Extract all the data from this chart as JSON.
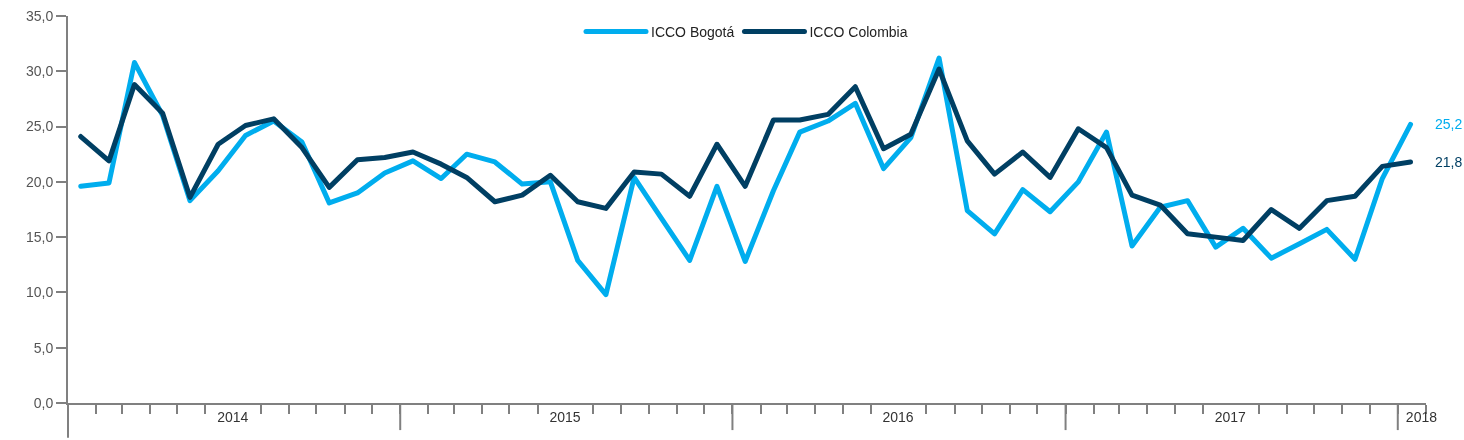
{
  "chart_data": {
    "type": "line",
    "x": [
      "2014-01-15",
      "2014-02-15",
      "2014-03-15",
      "2014-04-15",
      "2014-05-15",
      "2014-06-15",
      "2014-07-15",
      "2014-08-15",
      "2014-09-15",
      "2014-10-15",
      "2014-11-15",
      "2014-12-15",
      "2015-01-15",
      "2015-02-15",
      "2015-03-15",
      "2015-04-15",
      "2015-05-15",
      "2015-06-15",
      "2015-07-15",
      "2015-08-15",
      "2015-09-15",
      "2015-10-15",
      "2015-11-15",
      "2015-12-15",
      "2016-01-15",
      "2016-02-15",
      "2016-03-15",
      "2016-04-15",
      "2016-05-15",
      "2016-06-15",
      "2016-07-15",
      "2016-08-15",
      "2016-09-15",
      "2016-10-15",
      "2016-11-15",
      "2016-12-15",
      "2017-01-15",
      "2017-02-15",
      "2017-03-15",
      "2017-04-15",
      "2017-05-15",
      "2017-06-15",
      "2017-07-15",
      "2017-08-15",
      "2017-09-15",
      "2017-10-15",
      "2017-11-15",
      "2017-12-15",
      "2018-01-15"
    ],
    "series": [
      {
        "name": "ICCO Bogotá",
        "color": "#00adee",
        "values": [
          19.6,
          19.9,
          30.8,
          26.0,
          18.3,
          21.0,
          24.2,
          25.5,
          23.6,
          18.1,
          19.0,
          20.8,
          21.9,
          20.3,
          22.5,
          21.8,
          19.8,
          20.0,
          12.9,
          9.8,
          20.4,
          16.7,
          12.9,
          19.6,
          12.8,
          19.2,
          24.5,
          25.5,
          27.1,
          21.2,
          24.0,
          31.2,
          17.4,
          15.3,
          19.3,
          17.3,
          20.0,
          24.5,
          14.2,
          17.7,
          18.3,
          14.1,
          15.8,
          13.1,
          14.4,
          15.7,
          13.0,
          20.3,
          25.2
        ]
      },
      {
        "name": "ICCO Colombia",
        "color": "#003f63",
        "values": [
          24.1,
          21.9,
          28.8,
          26.2,
          18.6,
          23.4,
          25.1,
          25.7,
          23.1,
          19.5,
          22.0,
          22.2,
          22.7,
          21.6,
          20.4,
          18.2,
          18.8,
          20.6,
          18.2,
          17.6,
          20.9,
          20.7,
          18.7,
          23.4,
          19.6,
          25.6,
          25.6,
          26.1,
          28.6,
          23.0,
          24.3,
          30.2,
          23.7,
          20.7,
          22.7,
          20.4,
          24.8,
          23.1,
          18.8,
          17.9,
          15.3,
          15.0,
          14.7,
          17.5,
          15.8,
          18.3,
          18.7,
          21.4,
          21.8
        ]
      }
    ],
    "annotations": [
      {
        "text": "25,2",
        "x": "2018-01-15",
        "y": 25.2
      },
      {
        "text": "21,8",
        "x": "2018-01-15",
        "y": 21.8
      }
    ],
    "xlim": [
      "2014-01-01",
      "2018-02-01"
    ],
    "xticks": [
      {
        "value": "2014-02-01",
        "label": null
      },
      {
        "value": "2014-03-01",
        "label": null
      },
      {
        "value": "2014-04-01",
        "label": null
      },
      {
        "value": "2014-05-01",
        "label": null
      },
      {
        "value": "2014-06-01",
        "label": null
      },
      {
        "value": "2014-07-01",
        "label": "2014"
      },
      {
        "value": "2014-08-01",
        "label": null
      },
      {
        "value": "2014-09-01",
        "label": null
      },
      {
        "value": "2014-10-01",
        "label": null
      },
      {
        "value": "2014-11-01",
        "label": null
      },
      {
        "value": "2014-12-01",
        "label": null
      },
      {
        "value": "2015-01-01",
        "label": null
      },
      {
        "value": "2015-02-01",
        "label": null
      },
      {
        "value": "2015-03-01",
        "label": null
      },
      {
        "value": "2015-04-01",
        "label": null
      },
      {
        "value": "2015-05-01",
        "label": null
      },
      {
        "value": "2015-06-01",
        "label": null
      },
      {
        "value": "2015-07-01",
        "label": "2015"
      },
      {
        "value": "2015-08-01",
        "label": null
      },
      {
        "value": "2015-09-01",
        "label": null
      },
      {
        "value": "2015-10-01",
        "label": null
      },
      {
        "value": "2015-11-01",
        "label": null
      },
      {
        "value": "2015-12-01",
        "label": null
      },
      {
        "value": "2016-01-01",
        "label": null
      },
      {
        "value": "2016-02-01",
        "label": null
      },
      {
        "value": "2016-03-01",
        "label": null
      },
      {
        "value": "2016-04-01",
        "label": null
      },
      {
        "value": "2016-05-01",
        "label": null
      },
      {
        "value": "2016-06-01",
        "label": null
      },
      {
        "value": "2016-07-01",
        "label": "2016"
      },
      {
        "value": "2016-08-01",
        "label": null
      },
      {
        "value": "2016-09-01",
        "label": null
      },
      {
        "value": "2016-10-01",
        "label": null
      },
      {
        "value": "2016-11-01",
        "label": null
      },
      {
        "value": "2016-12-01",
        "label": null
      },
      {
        "value": "2017-01-01",
        "label": null
      },
      {
        "value": "2017-02-01",
        "label": null
      },
      {
        "value": "2017-03-01",
        "label": null
      },
      {
        "value": "2017-04-01",
        "label": null
      },
      {
        "value": "2017-05-01",
        "label": null
      },
      {
        "value": "2017-06-01",
        "label": null
      },
      {
        "value": "2017-07-01",
        "label": "2017"
      },
      {
        "value": "2017-08-01",
        "label": null
      },
      {
        "value": "2017-09-01",
        "label": null
      },
      {
        "value": "2017-10-01",
        "label": null
      },
      {
        "value": "2017-11-01",
        "label": null
      },
      {
        "value": "2017-12-01",
        "label": null
      },
      {
        "value": "2018-01-01",
        "label": null
      },
      {
        "value": "2018-01-27",
        "label": "2018"
      },
      {
        "value": "2018-02-01",
        "label": null
      }
    ],
    "ylim": [
      0,
      35
    ],
    "yticks": [
      {
        "value": 0,
        "label": "0,0"
      },
      {
        "value": 5,
        "label": "5,0"
      },
      {
        "value": 10,
        "label": "10,0"
      },
      {
        "value": 15,
        "label": "15,0"
      },
      {
        "value": 20,
        "label": "20,0"
      },
      {
        "value": 25,
        "label": "25,0"
      },
      {
        "value": 30,
        "label": "30,0"
      },
      {
        "value": 35,
        "label": "35,0"
      }
    ],
    "grid": false,
    "legend": "top",
    "marker": "none",
    "line_style": "solid"
  }
}
